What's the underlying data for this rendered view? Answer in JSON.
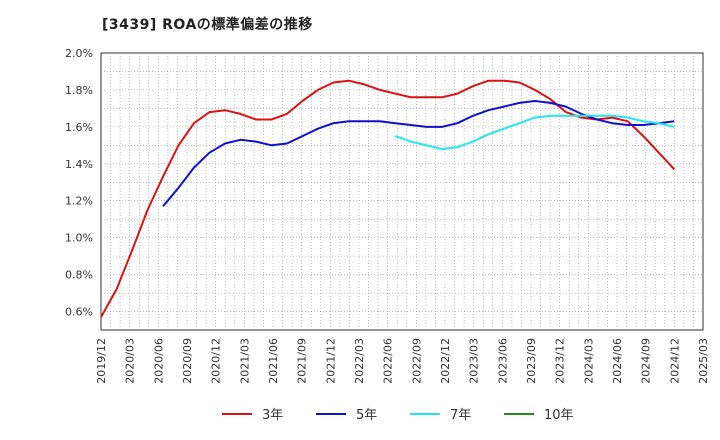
{
  "chart_data": {
    "type": "line",
    "title": "[3439]  ROAの標準偏差の推移",
    "xlabel": "",
    "ylabel": "",
    "ylim": [
      0.5,
      2.0
    ],
    "yticks": [
      "0.6%",
      "0.8%",
      "1.0%",
      "1.2%",
      "1.4%",
      "1.6%",
      "1.8%",
      "2.0%"
    ],
    "ytick_values": [
      0.6,
      0.8,
      1.0,
      1.2,
      1.4,
      1.6,
      1.8,
      2.0
    ],
    "xticks": [
      "2019/12",
      "2020/03",
      "2020/06",
      "2020/09",
      "2020/12",
      "2021/03",
      "2021/06",
      "2021/09",
      "2021/12",
      "2022/03",
      "2022/06",
      "2022/09",
      "2022/12",
      "2023/03",
      "2023/06",
      "2023/09",
      "2023/12",
      "2024/03",
      "2024/06",
      "2024/09",
      "2024/12",
      "2025/03"
    ],
    "grid": true,
    "legend_position": "bottom",
    "series": [
      {
        "name": "3年",
        "color": "#dd1111",
        "points": [
          [
            0,
            0.57
          ],
          [
            1,
            0.72
          ],
          [
            2,
            0.93
          ],
          [
            3,
            1.15
          ],
          [
            4,
            1.33
          ],
          [
            5,
            1.5
          ],
          [
            6,
            1.62
          ],
          [
            7,
            1.68
          ],
          [
            8,
            1.69
          ],
          [
            9,
            1.67
          ],
          [
            10,
            1.64
          ],
          [
            11,
            1.64
          ],
          [
            12,
            1.67
          ],
          [
            13,
            1.74
          ],
          [
            14,
            1.8
          ],
          [
            15,
            1.84
          ],
          [
            16,
            1.85
          ],
          [
            17,
            1.83
          ],
          [
            18,
            1.8
          ],
          [
            19,
            1.78
          ],
          [
            20,
            1.76
          ],
          [
            21,
            1.76
          ],
          [
            22,
            1.76
          ],
          [
            23,
            1.78
          ],
          [
            24,
            1.82
          ],
          [
            25,
            1.85
          ],
          [
            26,
            1.85
          ],
          [
            27,
            1.84
          ],
          [
            28,
            1.8
          ],
          [
            29,
            1.75
          ],
          [
            30,
            1.68
          ],
          [
            31,
            1.65
          ],
          [
            32,
            1.64
          ],
          [
            33,
            1.65
          ],
          [
            34,
            1.63
          ],
          [
            35,
            1.55
          ],
          [
            36,
            1.46
          ],
          [
            37,
            1.37
          ]
        ]
      },
      {
        "name": "5年",
        "color": "#1111cc",
        "points": [
          [
            4,
            1.17
          ],
          [
            5,
            1.27
          ],
          [
            6,
            1.38
          ],
          [
            7,
            1.46
          ],
          [
            8,
            1.51
          ],
          [
            9,
            1.53
          ],
          [
            10,
            1.52
          ],
          [
            11,
            1.5
          ],
          [
            12,
            1.51
          ],
          [
            13,
            1.55
          ],
          [
            14,
            1.59
          ],
          [
            15,
            1.62
          ],
          [
            16,
            1.63
          ],
          [
            17,
            1.63
          ],
          [
            18,
            1.63
          ],
          [
            19,
            1.62
          ],
          [
            20,
            1.61
          ],
          [
            21,
            1.6
          ],
          [
            22,
            1.6
          ],
          [
            23,
            1.62
          ],
          [
            24,
            1.66
          ],
          [
            25,
            1.69
          ],
          [
            26,
            1.71
          ],
          [
            27,
            1.73
          ],
          [
            28,
            1.74
          ],
          [
            29,
            1.73
          ],
          [
            30,
            1.71
          ],
          [
            31,
            1.67
          ],
          [
            32,
            1.64
          ],
          [
            33,
            1.62
          ],
          [
            34,
            1.61
          ],
          [
            35,
            1.61
          ],
          [
            36,
            1.62
          ],
          [
            37,
            1.63
          ]
        ]
      },
      {
        "name": "7年",
        "color": "#22e6f0",
        "points": [
          [
            19,
            1.55
          ],
          [
            20,
            1.52
          ],
          [
            21,
            1.5
          ],
          [
            22,
            1.48
          ],
          [
            23,
            1.49
          ],
          [
            24,
            1.52
          ],
          [
            25,
            1.56
          ],
          [
            26,
            1.59
          ],
          [
            27,
            1.62
          ],
          [
            28,
            1.65
          ],
          [
            29,
            1.66
          ],
          [
            30,
            1.66
          ],
          [
            31,
            1.66
          ],
          [
            32,
            1.66
          ],
          [
            33,
            1.66
          ],
          [
            34,
            1.65
          ],
          [
            35,
            1.63
          ],
          [
            36,
            1.62
          ],
          [
            37,
            1.6
          ]
        ]
      },
      {
        "name": "10年",
        "color": "#228b22",
        "points": []
      }
    ]
  }
}
